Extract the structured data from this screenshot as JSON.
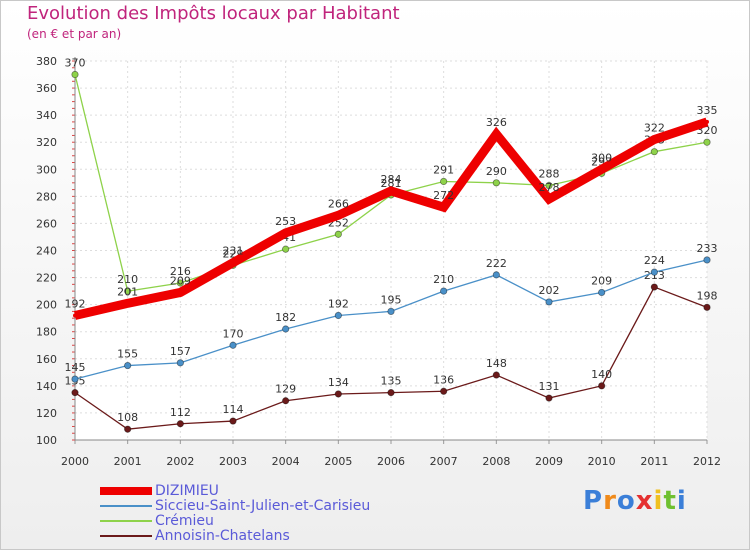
{
  "title": "Evolution des Impôts locaux par Habitant",
  "subtitle": "(en € et par an)",
  "logo": {
    "text": "Proxiti",
    "colors": [
      "#3b7fd8",
      "#f08a1a",
      "#3b7fd8",
      "#e53030",
      "#f0c020",
      "#6fc030",
      "#3b7fd8"
    ]
  },
  "chart_data": {
    "type": "line",
    "x": [
      "2000",
      "2001",
      "2002",
      "2003",
      "2004",
      "2005",
      "2006",
      "2007",
      "2008",
      "2009",
      "2010",
      "2011",
      "2012"
    ],
    "ylim": [
      100,
      380
    ],
    "yticks": [
      100,
      120,
      140,
      160,
      180,
      200,
      220,
      240,
      260,
      280,
      300,
      320,
      340,
      360,
      380
    ],
    "grid": true,
    "legend_position": "bottom-left",
    "series": [
      {
        "name": "Annoisin-Chatelans",
        "color": "#6b1a1a",
        "labels": [
          "135",
          "108",
          "112",
          "114",
          "129",
          "134",
          "135",
          "136",
          "148",
          "131",
          "140",
          "213",
          "198"
        ],
        "values": [
          135,
          108,
          112,
          114,
          129,
          134,
          135,
          136,
          148,
          131,
          140,
          213,
          198
        ]
      },
      {
        "name": "Siccieu-Saint-Julien-et-Carisieu",
        "color": "#4a90c8",
        "labels": [
          "145",
          "155",
          "157",
          "170",
          "182",
          "192",
          "195",
          "210",
          "222",
          "202",
          "209",
          "224",
          "233"
        ],
        "values": [
          145,
          155,
          157,
          170,
          182,
          192,
          195,
          210,
          222,
          202,
          209,
          224,
          233
        ]
      },
      {
        "name": "Crémieu",
        "color": "#8ed24a",
        "labels": [
          "370",
          "210",
          "216",
          "229",
          "241",
          "252",
          "281",
          "291",
          "290",
          "288",
          "297",
          "313",
          "320"
        ],
        "values": [
          370,
          210,
          216,
          229,
          241,
          252,
          281,
          291,
          290,
          288,
          297,
          313,
          320
        ]
      },
      {
        "name": "DIZIMIEU",
        "color": "#ee0000",
        "labels": [
          "192",
          "201",
          "209",
          "231",
          "253",
          "266",
          "284",
          "272",
          "326",
          "278",
          "300",
          "322",
          "335"
        ],
        "values": [
          192,
          201,
          209,
          231,
          253,
          266,
          284,
          272,
          326,
          278,
          300,
          322,
          335
        ]
      }
    ],
    "legend": [
      "DIZIMIEU",
      "Siccieu-Saint-Julien-et-Carisieu",
      "Crémieu",
      "Annoisin-Chatelans"
    ]
  }
}
